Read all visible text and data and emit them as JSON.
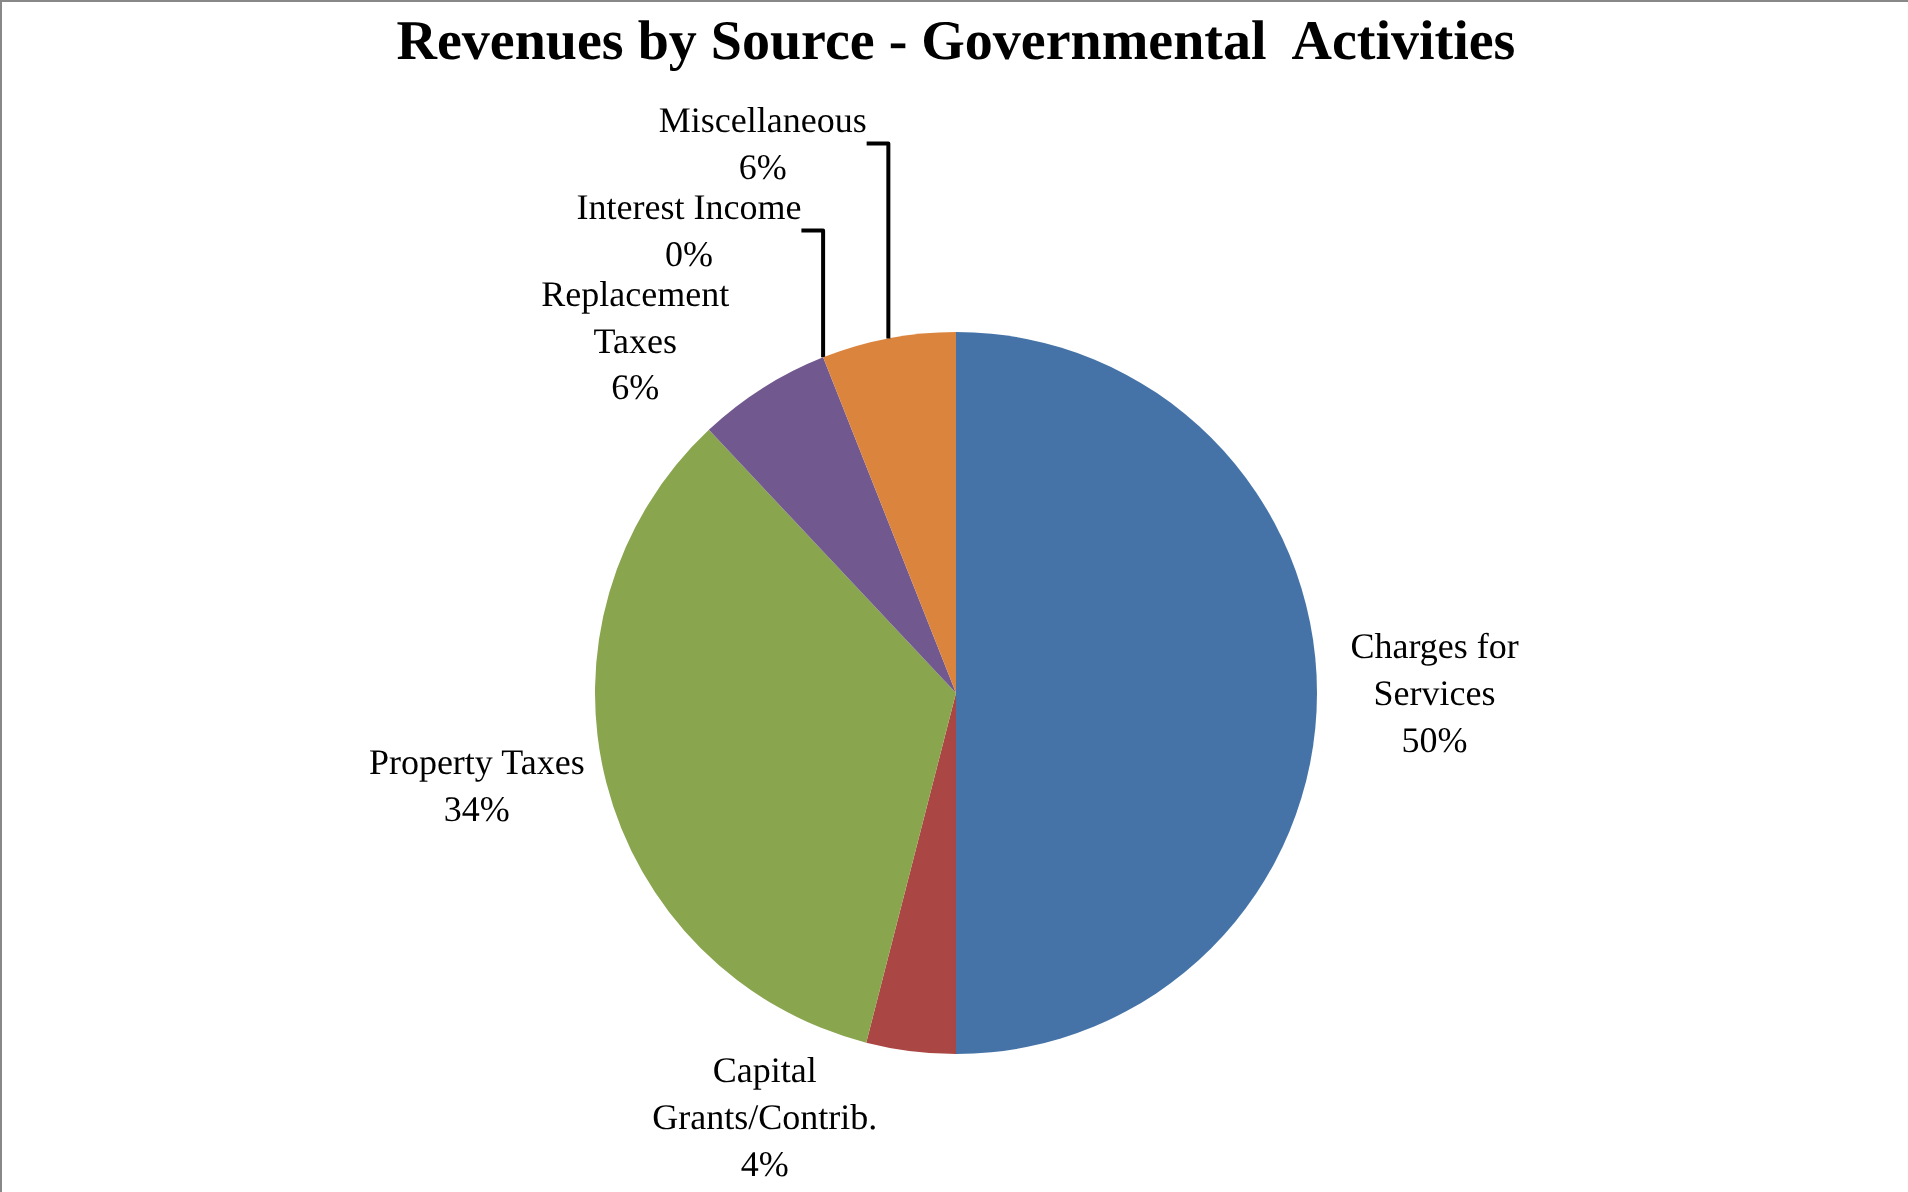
{
  "chart_data": {
    "type": "pie",
    "title": "Revenues by Source - Governmental  Activities",
    "categories": [
      "Charges for Services",
      "Capital Grants/Contrib.",
      "Property Taxes",
      "Replacement Taxes",
      "Interest Income",
      "Miscellaneous"
    ],
    "values": [
      50,
      4,
      34,
      6,
      0,
      6
    ],
    "value_labels": [
      "50%",
      "4%",
      "34%",
      "6%",
      "0%",
      "6%"
    ],
    "colors": [
      "#4573a7",
      "#aa4643",
      "#89a54e",
      "#71588f",
      "#4198af",
      "#db843d"
    ],
    "legend": false
  }
}
